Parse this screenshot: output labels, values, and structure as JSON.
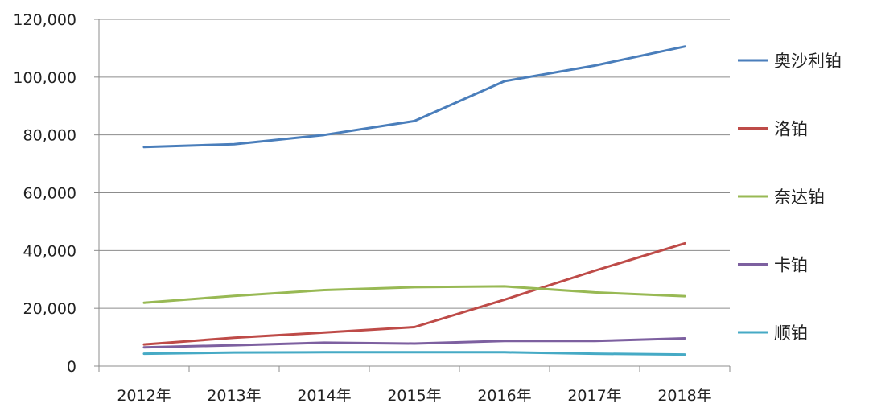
{
  "chart_data": {
    "type": "line",
    "title": "",
    "xlabel": "",
    "ylabel": "",
    "categories": [
      "2012年",
      "2013年",
      "2014年",
      "2015年",
      "2016年",
      "2017年",
      "2018年"
    ],
    "ylim": [
      0,
      120000
    ],
    "yticks": [
      0,
      20000,
      40000,
      60000,
      80000,
      100000,
      120000
    ],
    "ytick_labels": [
      "0",
      "20,000",
      "40,000",
      "60,000",
      "80,000",
      "100,000",
      "120,000"
    ],
    "grid": true,
    "legend_position": "right",
    "series": [
      {
        "name": "奥沙利铂",
        "color": "#4a7ebb",
        "values": [
          75800,
          76800,
          80000,
          84800,
          98600,
          104000,
          110600
        ]
      },
      {
        "name": "洛铂",
        "color": "#be4b48",
        "values": [
          7500,
          9800,
          11600,
          13500,
          23000,
          33000,
          42500
        ]
      },
      {
        "name": "奈达铂",
        "color": "#98b954",
        "values": [
          21900,
          24300,
          26300,
          27300,
          27600,
          25500,
          24200
        ]
      },
      {
        "name": "卡铂",
        "color": "#7d60a0",
        "values": [
          6500,
          7200,
          8100,
          7800,
          8700,
          8700,
          9600
        ]
      },
      {
        "name": "顺铂",
        "color": "#46aac5",
        "values": [
          4300,
          4700,
          4800,
          4800,
          4800,
          4300,
          4000
        ]
      }
    ]
  }
}
